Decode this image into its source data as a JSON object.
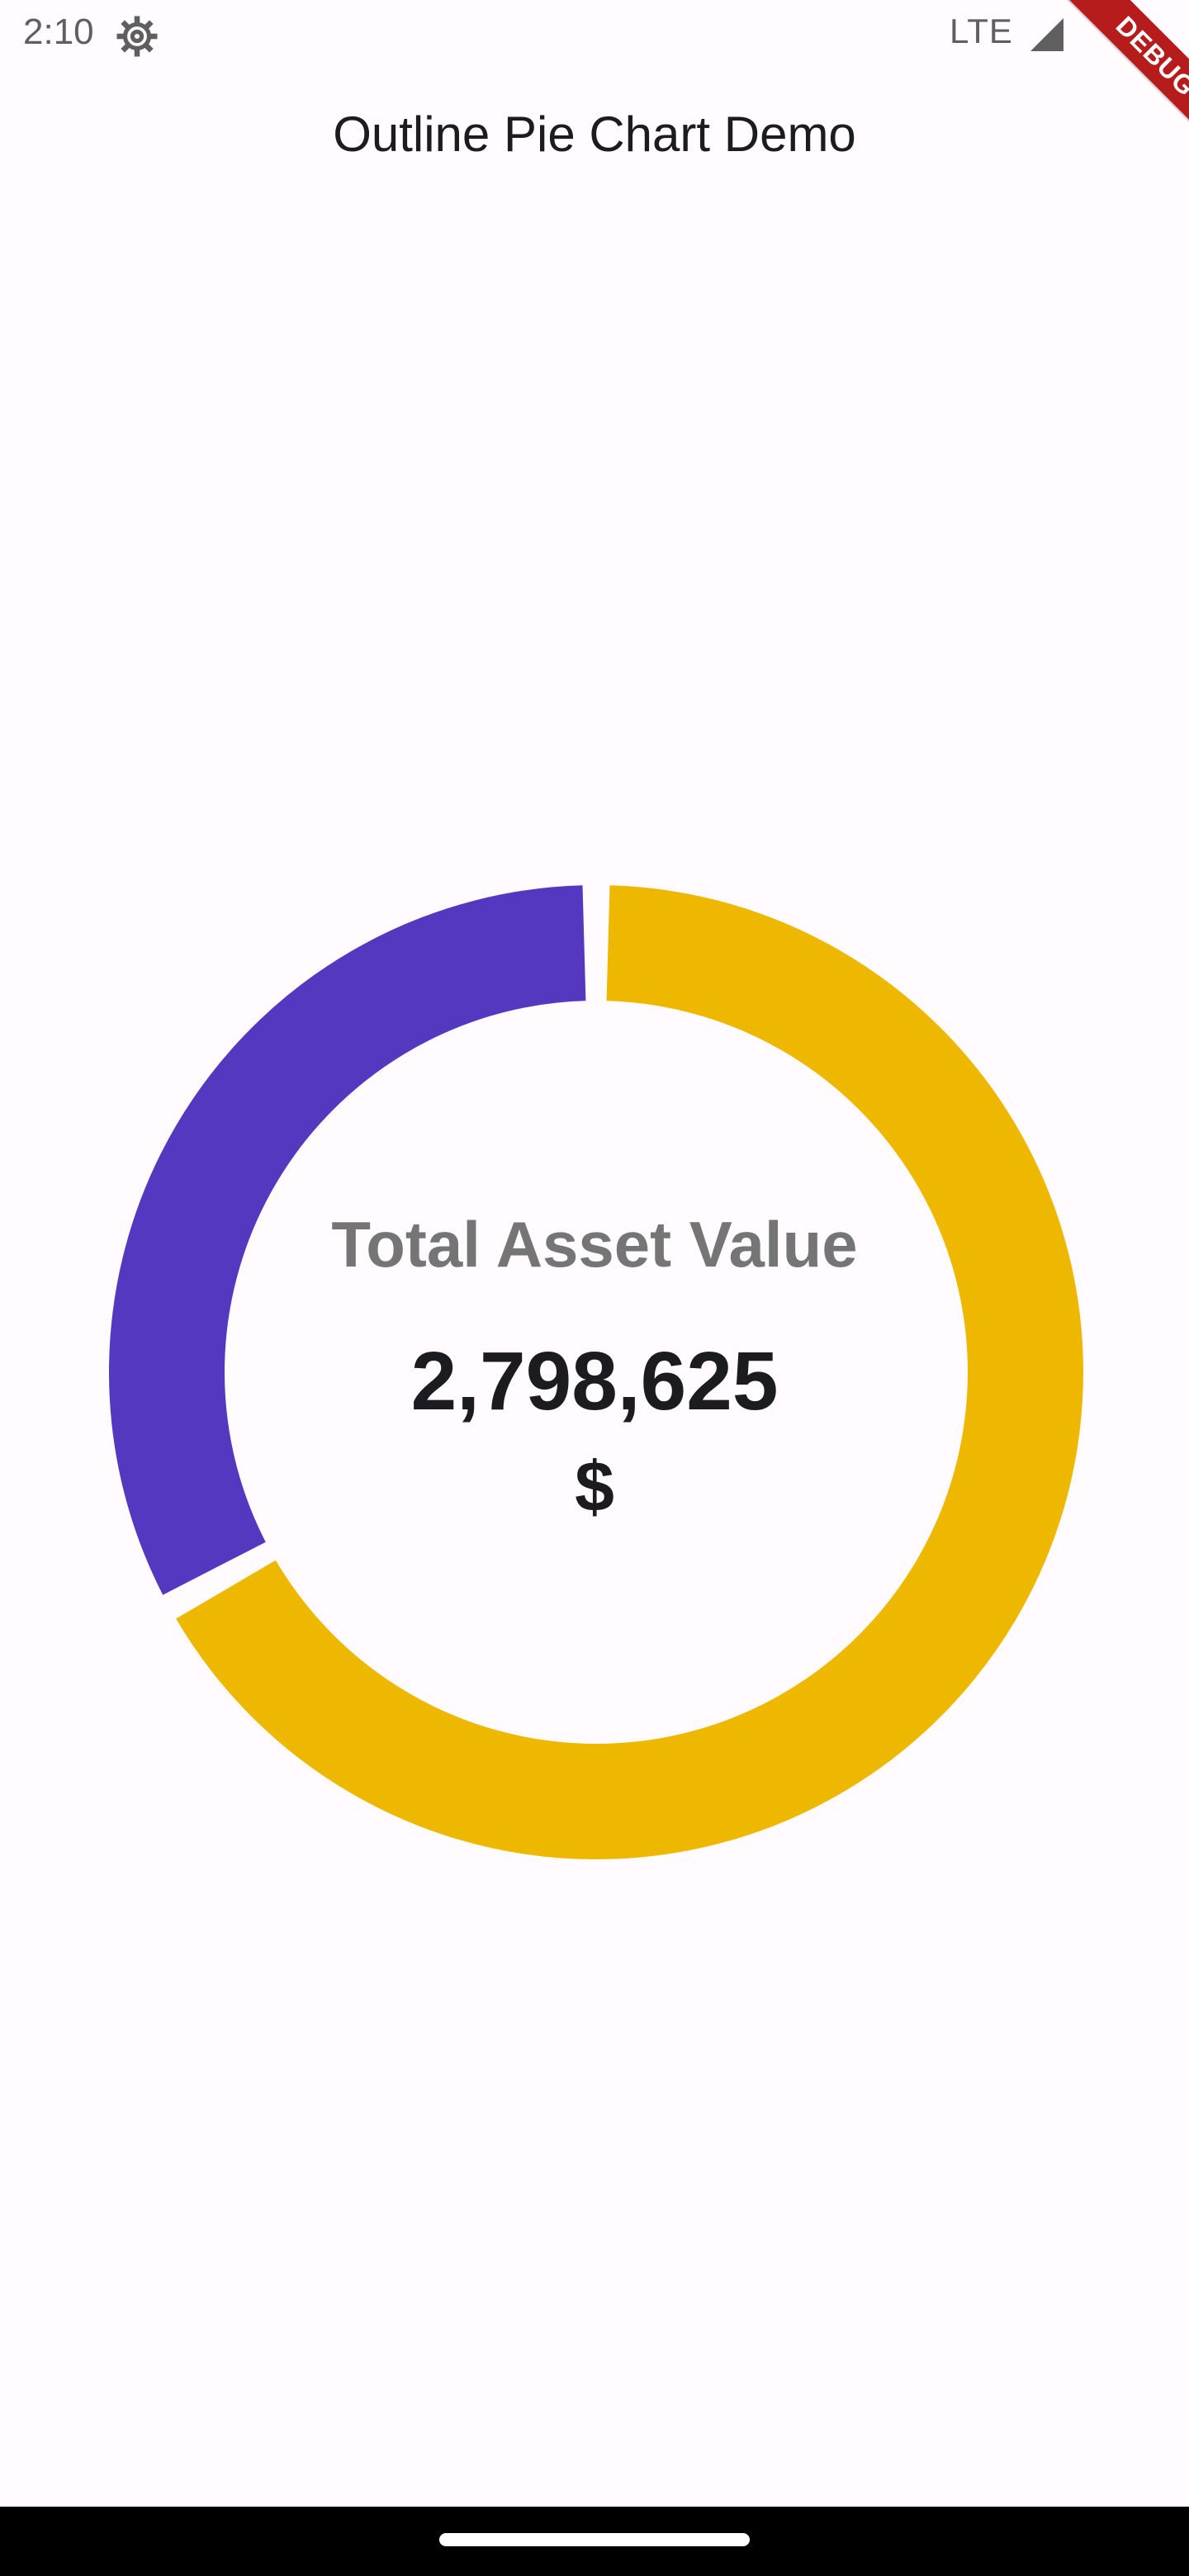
{
  "status_bar": {
    "time": "2:10",
    "network": "LTE",
    "icons": [
      "gear-icon",
      "signal-icon"
    ]
  },
  "debug_banner": {
    "label": "DEBUG",
    "color": "#b71c1c"
  },
  "app_bar": {
    "title": "Outline Pie Chart Demo"
  },
  "center": {
    "label": "Total Asset Value",
    "value": "2,798,625",
    "unit": "$"
  },
  "colors": {
    "background": "#fffbfe",
    "purple": "#5538c0",
    "yellow": "#efb800"
  },
  "chart_data": {
    "type": "pie",
    "title": "",
    "style": "donut",
    "slices": [
      {
        "value": 0.67,
        "color": "#efb800"
      },
      {
        "value": 0.33,
        "color": "#5538c0"
      }
    ],
    "legend": "none"
  }
}
